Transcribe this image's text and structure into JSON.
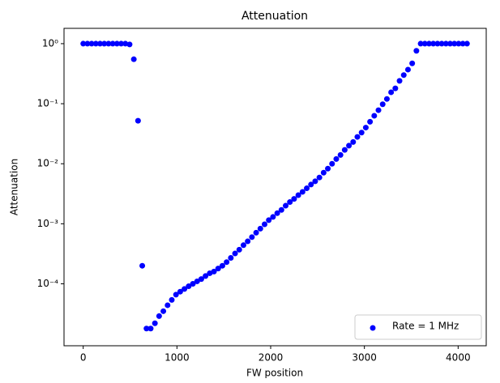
{
  "chart_data": {
    "type": "scatter",
    "title": "Attenuation",
    "xlabel": "FW position",
    "ylabel": "Attenuation",
    "log_y": true,
    "legend": "lower right",
    "xlim": [
      -204.75,
      4299.75
    ],
    "ylim": [
      9.3e-06,
      1.8
    ],
    "xticks": [
      0,
      1000,
      2000,
      3000,
      4000
    ],
    "yticks": [
      {
        "value": 0.0001,
        "label": "10⁻⁴"
      },
      {
        "value": 0.001,
        "label": "10⁻³"
      },
      {
        "value": 0.01,
        "label": "10⁻²"
      },
      {
        "value": 0.1,
        "label": "10⁻¹"
      },
      {
        "value": 1,
        "label": "10⁰"
      }
    ],
    "series": [
      {
        "name": "Rate = 1 MHz",
        "color": "#0000ff",
        "x": [
          0,
          45,
          90,
          135,
          180,
          225,
          270,
          315,
          360,
          405,
          450,
          495,
          540,
          585,
          630,
          675,
          720,
          765,
          810,
          855,
          900,
          945,
          990,
          1035,
          1080,
          1125,
          1170,
          1215,
          1260,
          1305,
          1350,
          1395,
          1440,
          1485,
          1530,
          1575,
          1620,
          1665,
          1710,
          1755,
          1800,
          1845,
          1890,
          1935,
          1980,
          2025,
          2070,
          2115,
          2160,
          2205,
          2250,
          2295,
          2340,
          2385,
          2430,
          2475,
          2520,
          2565,
          2610,
          2655,
          2700,
          2745,
          2790,
          2835,
          2880,
          2925,
          2970,
          3015,
          3060,
          3105,
          3150,
          3195,
          3240,
          3285,
          3330,
          3375,
          3420,
          3465,
          3510,
          3555,
          3600,
          3645,
          3690,
          3735,
          3780,
          3825,
          3870,
          3915,
          3960,
          4005,
          4050,
          4095
        ],
        "values": [
          1,
          1,
          1,
          1,
          1,
          1,
          1,
          1,
          1,
          1,
          1,
          0.97,
          0.55,
          0.052,
          0.0002,
          1.8e-05,
          1.8e-05,
          2.2e-05,
          2.9e-05,
          3.5e-05,
          4.4e-05,
          5.4e-05,
          6.6e-05,
          7.4e-05,
          8.2e-05,
          9.1e-05,
          0.0001,
          0.00011,
          0.00012,
          0.000135,
          0.00015,
          0.00016,
          0.00018,
          0.0002,
          0.00023,
          0.00027,
          0.00032,
          0.00037,
          0.00044,
          0.00051,
          0.0006,
          0.00071,
          0.00083,
          0.00098,
          0.00115,
          0.0013,
          0.0015,
          0.0017,
          0.002,
          0.0023,
          0.0026,
          0.003,
          0.0034,
          0.0039,
          0.0045,
          0.0051,
          0.0059,
          0.0071,
          0.0083,
          0.01,
          0.012,
          0.014,
          0.017,
          0.02,
          0.023,
          0.028,
          0.033,
          0.04,
          0.05,
          0.063,
          0.078,
          0.098,
          0.12,
          0.155,
          0.18,
          0.24,
          0.3,
          0.37,
          0.47,
          0.76,
          1,
          1,
          1,
          1,
          1,
          1,
          1,
          1,
          1,
          1,
          1,
          1
        ]
      }
    ]
  }
}
